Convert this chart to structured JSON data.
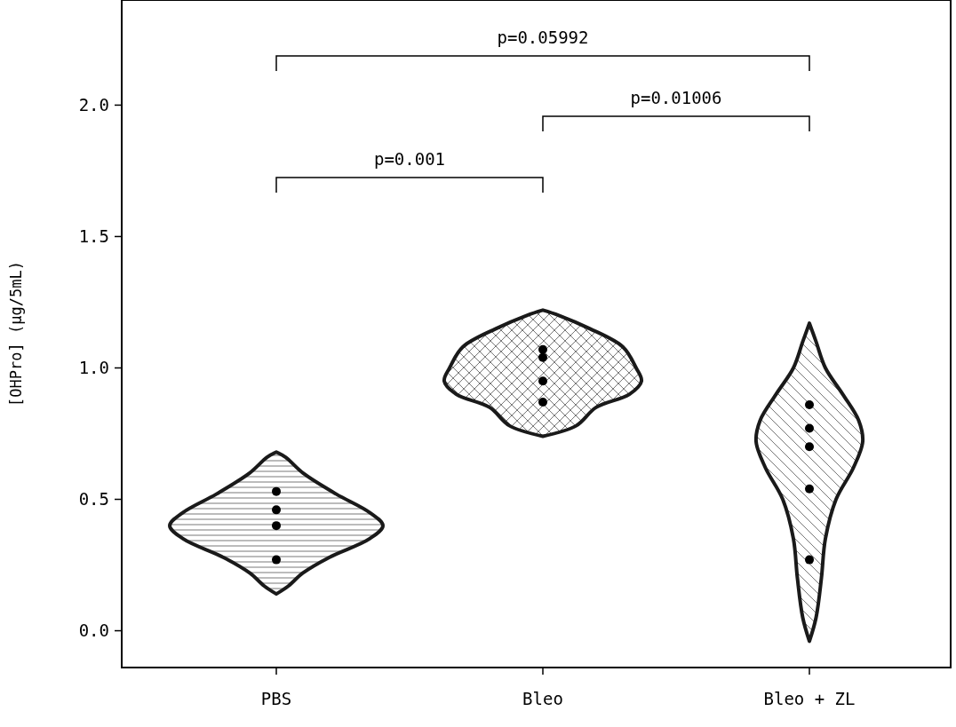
{
  "chart_data": {
    "type": "scatter",
    "ylabel": "[OHPro] (μg/5mL)",
    "categories": [
      "PBS",
      "Bleo",
      "Bleo + ZL"
    ],
    "ylim": [
      -0.14,
      2.4
    ],
    "yticks": [
      {
        "value": 0,
        "label": "0.0"
      },
      {
        "value": 0.5,
        "label": "0.5"
      },
      {
        "value": 1,
        "label": "1.0"
      },
      {
        "value": 1.5,
        "label": "1.5"
      },
      {
        "value": 2,
        "label": "2.0"
      }
    ],
    "grid": false,
    "marker": "circle",
    "annotations": [
      "p=0.001",
      "p=0.01006",
      "p=0.05992"
    ],
    "series": [
      {
        "type": "scatter",
        "color": "#000000",
        "x": [
          "PBS",
          "PBS",
          "PBS",
          "PBS",
          "Bleo",
          "Bleo",
          "Bleo",
          "Bleo",
          "Bleo + ZL",
          "Bleo + ZL",
          "Bleo + ZL",
          "Bleo + ZL",
          "Bleo + ZL"
        ],
        "values": [
          0.53,
          0.46,
          0.4,
          0.27,
          1.07,
          1.04,
          0.95,
          0.87,
          0.86,
          0.77,
          0.7,
          0.54,
          0.27
        ]
      }
    ]
  }
}
